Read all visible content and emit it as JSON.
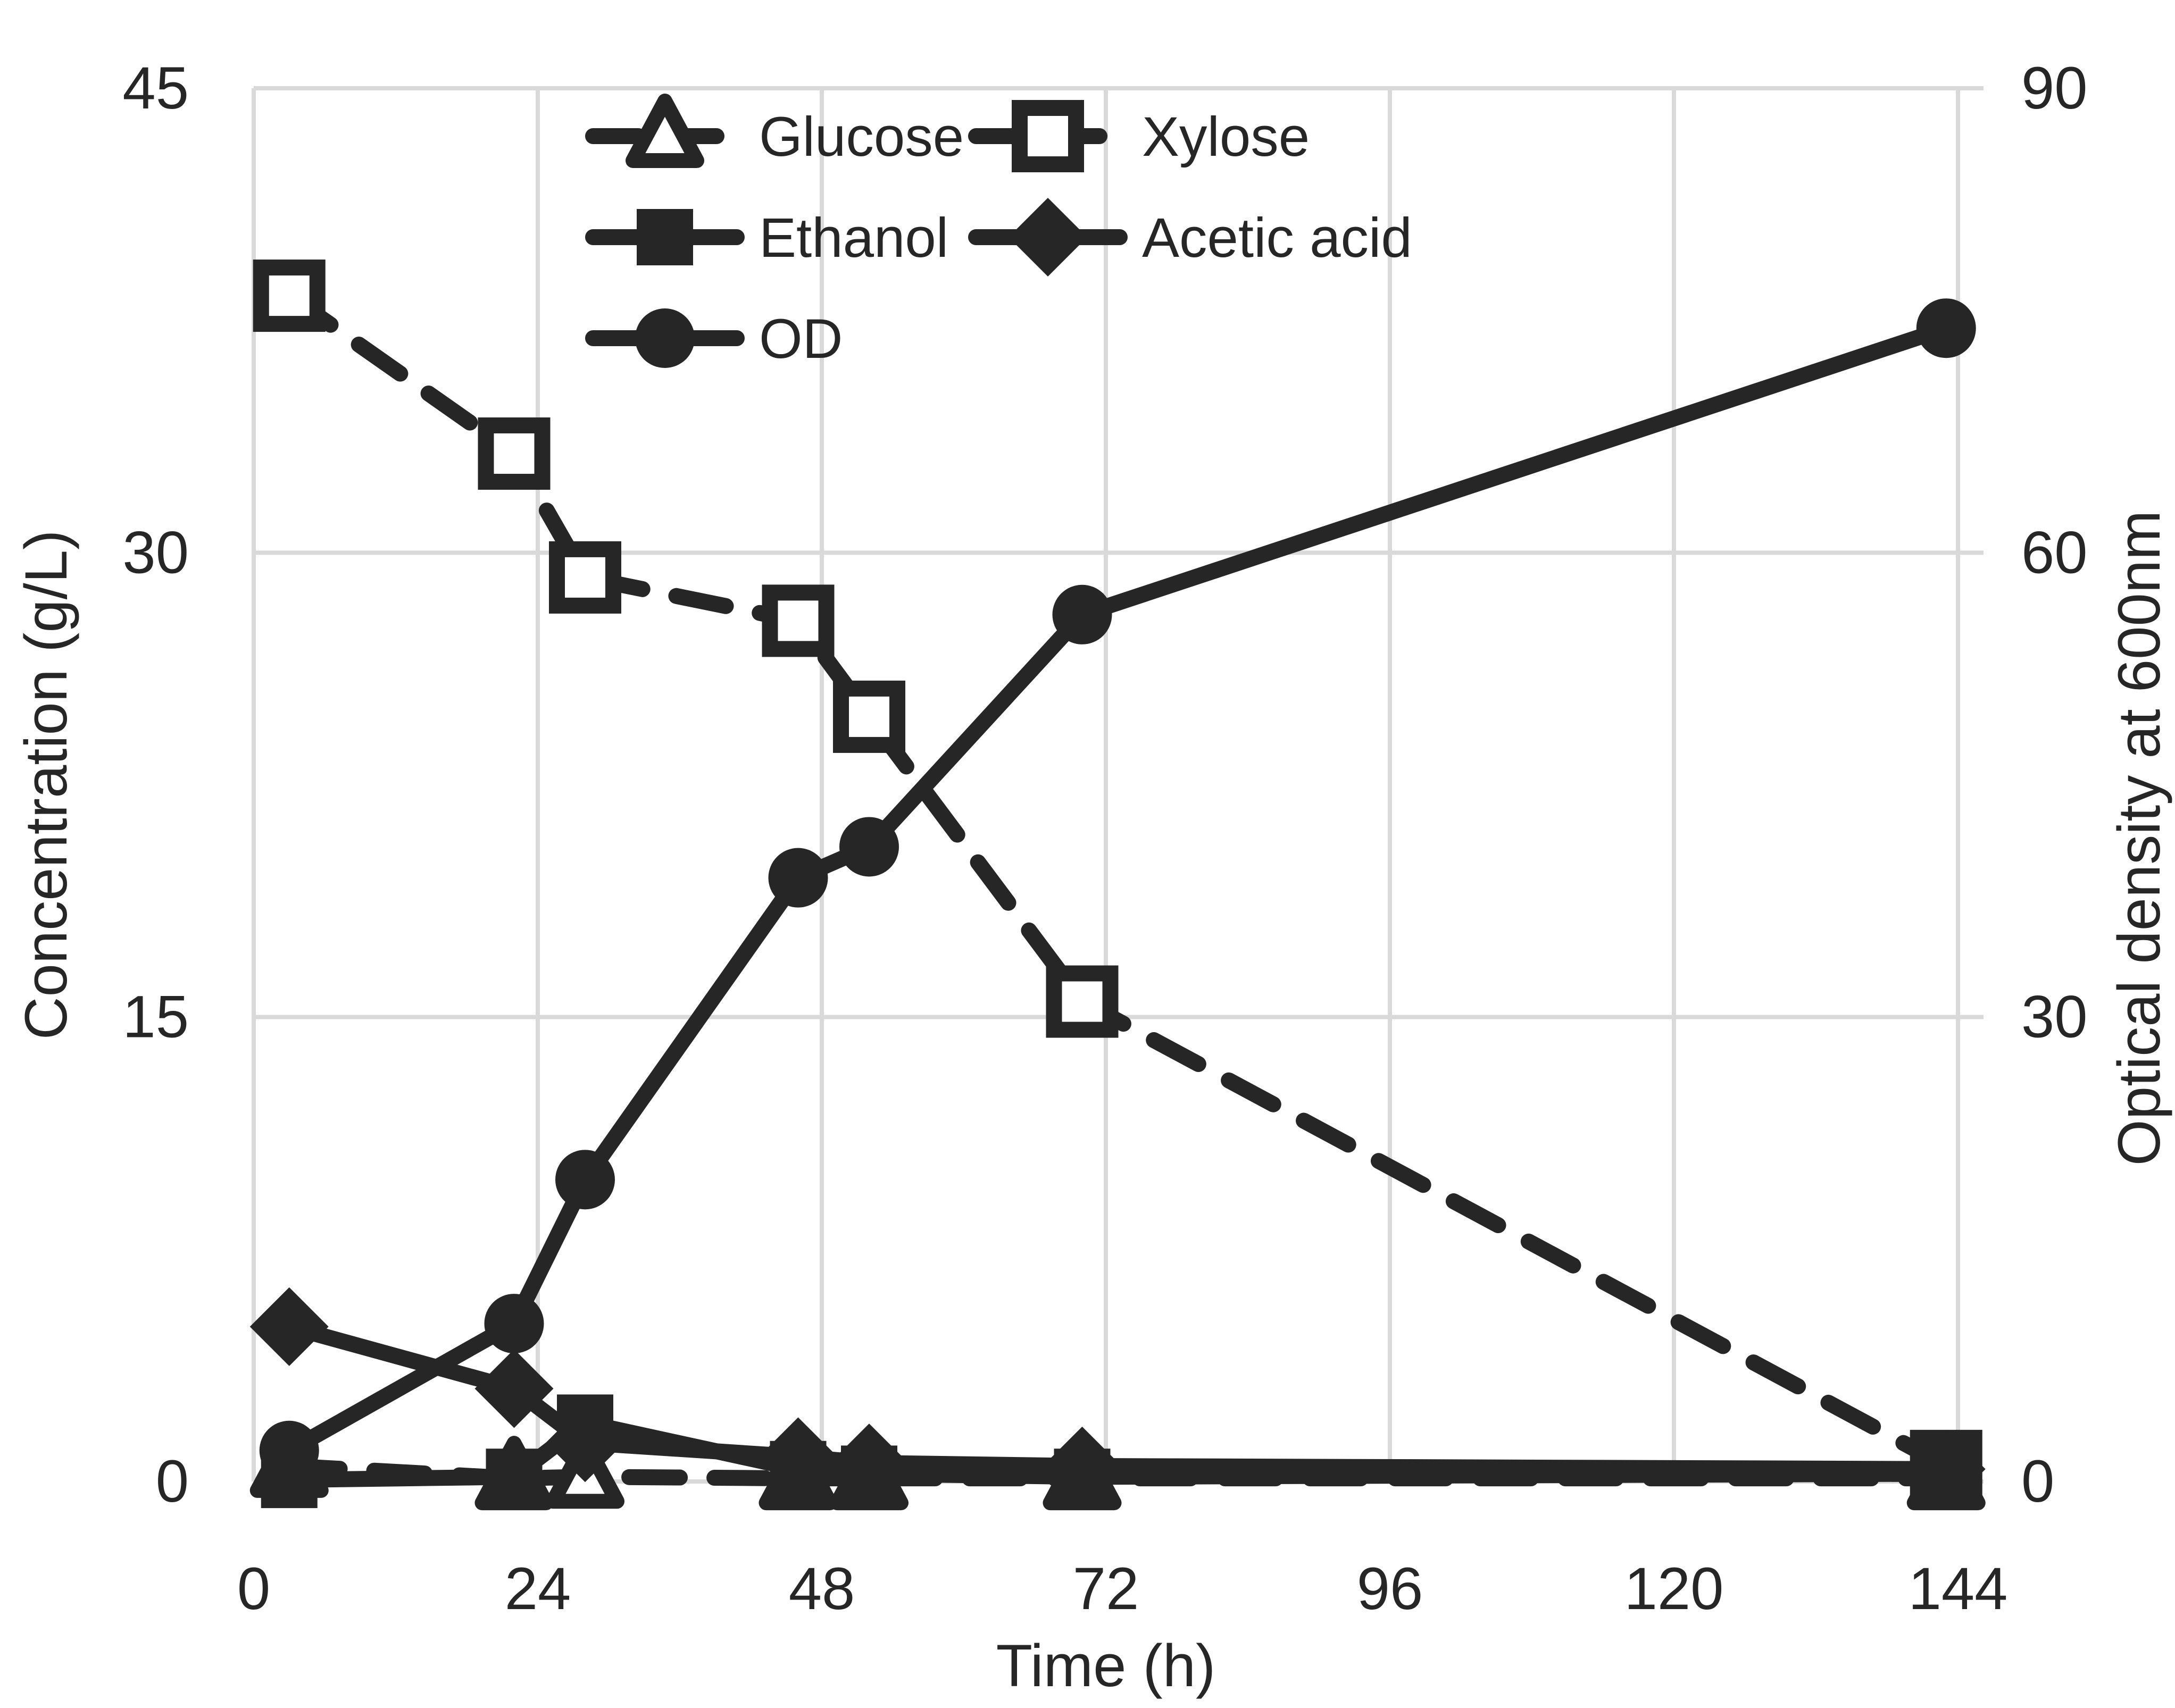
{
  "chart_data": {
    "type": "line",
    "x": [
      3,
      22,
      28,
      46,
      52,
      70,
      143
    ],
    "series": [
      {
        "name": "Glucose",
        "axis": "left",
        "line": "dashed",
        "marker": "triangle-open",
        "values": [
          0.5,
          0.1,
          0.15,
          0.1,
          0.1,
          0.1,
          0.1
        ]
      },
      {
        "name": "Xylose",
        "axis": "left",
        "line": "dashed",
        "marker": "square-open",
        "values": [
          38.3,
          33.2,
          29.2,
          27.8,
          24.7,
          15.5,
          0.5
        ]
      },
      {
        "name": "Ethanol",
        "axis": "left",
        "line": "solid",
        "marker": "square-filled",
        "values": [
          0.05,
          0.15,
          1.9,
          0.4,
          0.25,
          0.15,
          0.25
        ]
      },
      {
        "name": "Acetic acid",
        "axis": "left",
        "line": "solid",
        "marker": "diamond-filled",
        "values": [
          5.0,
          3.0,
          1.25,
          0.8,
          0.6,
          0.5,
          0.4
        ]
      },
      {
        "name": "OD",
        "axis": "right",
        "line": "solid",
        "marker": "circle-filled",
        "values": [
          2.0,
          10.2,
          19.5,
          39.0,
          41.0,
          56.0,
          74.5
        ]
      }
    ],
    "xlabel": "Time (h)",
    "ylabel_left": "Concentration (g/L)",
    "ylabel_right": "Optical density at 600nm",
    "x_ticks": [
      0,
      24,
      48,
      72,
      96,
      120,
      144
    ],
    "x_tick_labels": [
      "0",
      "24",
      "48",
      "72",
      "96",
      "120",
      "144"
    ],
    "y_left_ticks": [
      0,
      15,
      30,
      45
    ],
    "y_left_tick_labels": [
      "0",
      "15",
      "30",
      "45"
    ],
    "y_right_ticks": [
      0,
      30,
      60,
      90
    ],
    "y_right_tick_labels": [
      "0",
      "30",
      "60",
      "90"
    ],
    "xlim": [
      0,
      144
    ],
    "ylim_left": [
      0,
      45
    ],
    "ylim_right": [
      0,
      90
    ],
    "grid": true,
    "legend_position": "top-center-inside",
    "legend_rows": [
      [
        "Glucose",
        "Xylose"
      ],
      [
        "Ethanol",
        "Acetic acid"
      ],
      [
        "OD"
      ]
    ],
    "colors": {
      "series": "#262626",
      "grid": "#d9d9d9",
      "text": "#262626",
      "background": "#ffffff"
    }
  }
}
